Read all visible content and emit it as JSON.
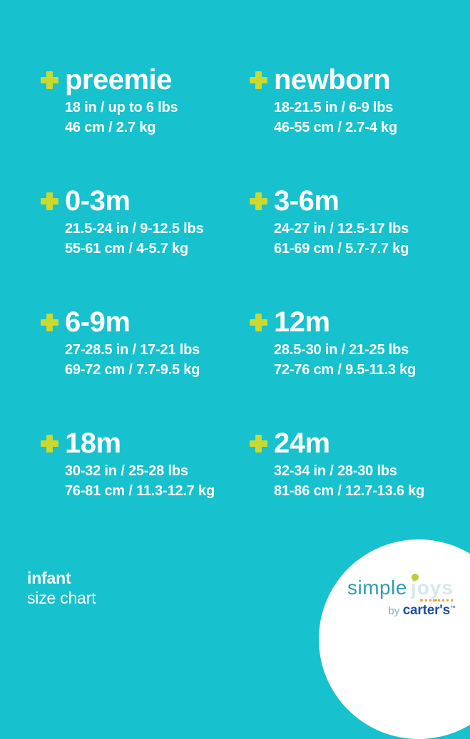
{
  "colors": {
    "bg": "#17c1ce",
    "accent": "#c9d930",
    "text": "#ffffff",
    "logo_simple": "#2e9db0",
    "logo_joys": "#d7e7ec",
    "logo_dot": "#b8cf2f",
    "logo_dots": "#eaa63c",
    "logo_by": "#7ba9cf",
    "logo_brand": "#1d4f9e"
  },
  "chart_data": {
    "type": "table",
    "title": "infant size chart",
    "columns": [
      "size",
      "length_weight_imperial",
      "length_weight_metric"
    ],
    "rows": [
      [
        "preemie",
        "18 in / up to 6 lbs",
        "46 cm / 2.7 kg"
      ],
      [
        "newborn",
        "18-21.5 in / 6-9 lbs",
        "46-55 cm / 2.7-4 kg"
      ],
      [
        "0-3m",
        "21.5-24 in / 9-12.5 lbs",
        "55-61 cm / 4-5.7 kg"
      ],
      [
        "3-6m",
        "24-27 in / 12.5-17 lbs",
        "61-69 cm / 5.7-7.7 kg"
      ],
      [
        "6-9m",
        "27-28.5 in / 17-21 lbs",
        "69-72 cm / 7.7-9.5 kg"
      ],
      [
        "12m",
        "28.5-30 in / 21-25 lbs",
        "72-76 cm / 9.5-11.3 kg"
      ],
      [
        "18m",
        "30-32 in / 25-28 lbs",
        "76-81 cm / 11.3-12.7 kg"
      ],
      [
        "24m",
        "32-34 in / 28-30 lbs",
        "81-86 cm / 12.7-13.6 kg"
      ]
    ]
  },
  "sizes": [
    {
      "label": "preemie",
      "imperial": "18 in / up to 6 lbs",
      "metric": "46 cm / 2.7 kg"
    },
    {
      "label": "newborn",
      "imperial": "18-21.5 in / 6-9 lbs",
      "metric": "46-55 cm / 2.7-4 kg"
    },
    {
      "label": "0-3m",
      "imperial": "21.5-24 in / 9-12.5 lbs",
      "metric": "55-61 cm / 4-5.7 kg"
    },
    {
      "label": "3-6m",
      "imperial": "24-27 in / 12.5-17 lbs",
      "metric": "61-69 cm / 5.7-7.7 kg"
    },
    {
      "label": "6-9m",
      "imperial": "27-28.5 in / 17-21 lbs",
      "metric": "69-72 cm / 7.7-9.5 kg"
    },
    {
      "label": "12m",
      "imperial": "28.5-30 in / 21-25 lbs",
      "metric": "72-76 cm / 9.5-11.3 kg"
    },
    {
      "label": "18m",
      "imperial": "30-32 in / 25-28 lbs",
      "metric": "76-81 cm / 11.3-12.7 kg"
    },
    {
      "label": "24m",
      "imperial": "32-34 in / 28-30 lbs",
      "metric": "81-86 cm / 12.7-13.6 kg"
    }
  ],
  "footer": {
    "category": "infant",
    "subtitle": "size chart"
  },
  "logo": {
    "simple": "simple",
    "joys": "joys",
    "by": "by",
    "brand": "carter's",
    "trademark": "™"
  }
}
